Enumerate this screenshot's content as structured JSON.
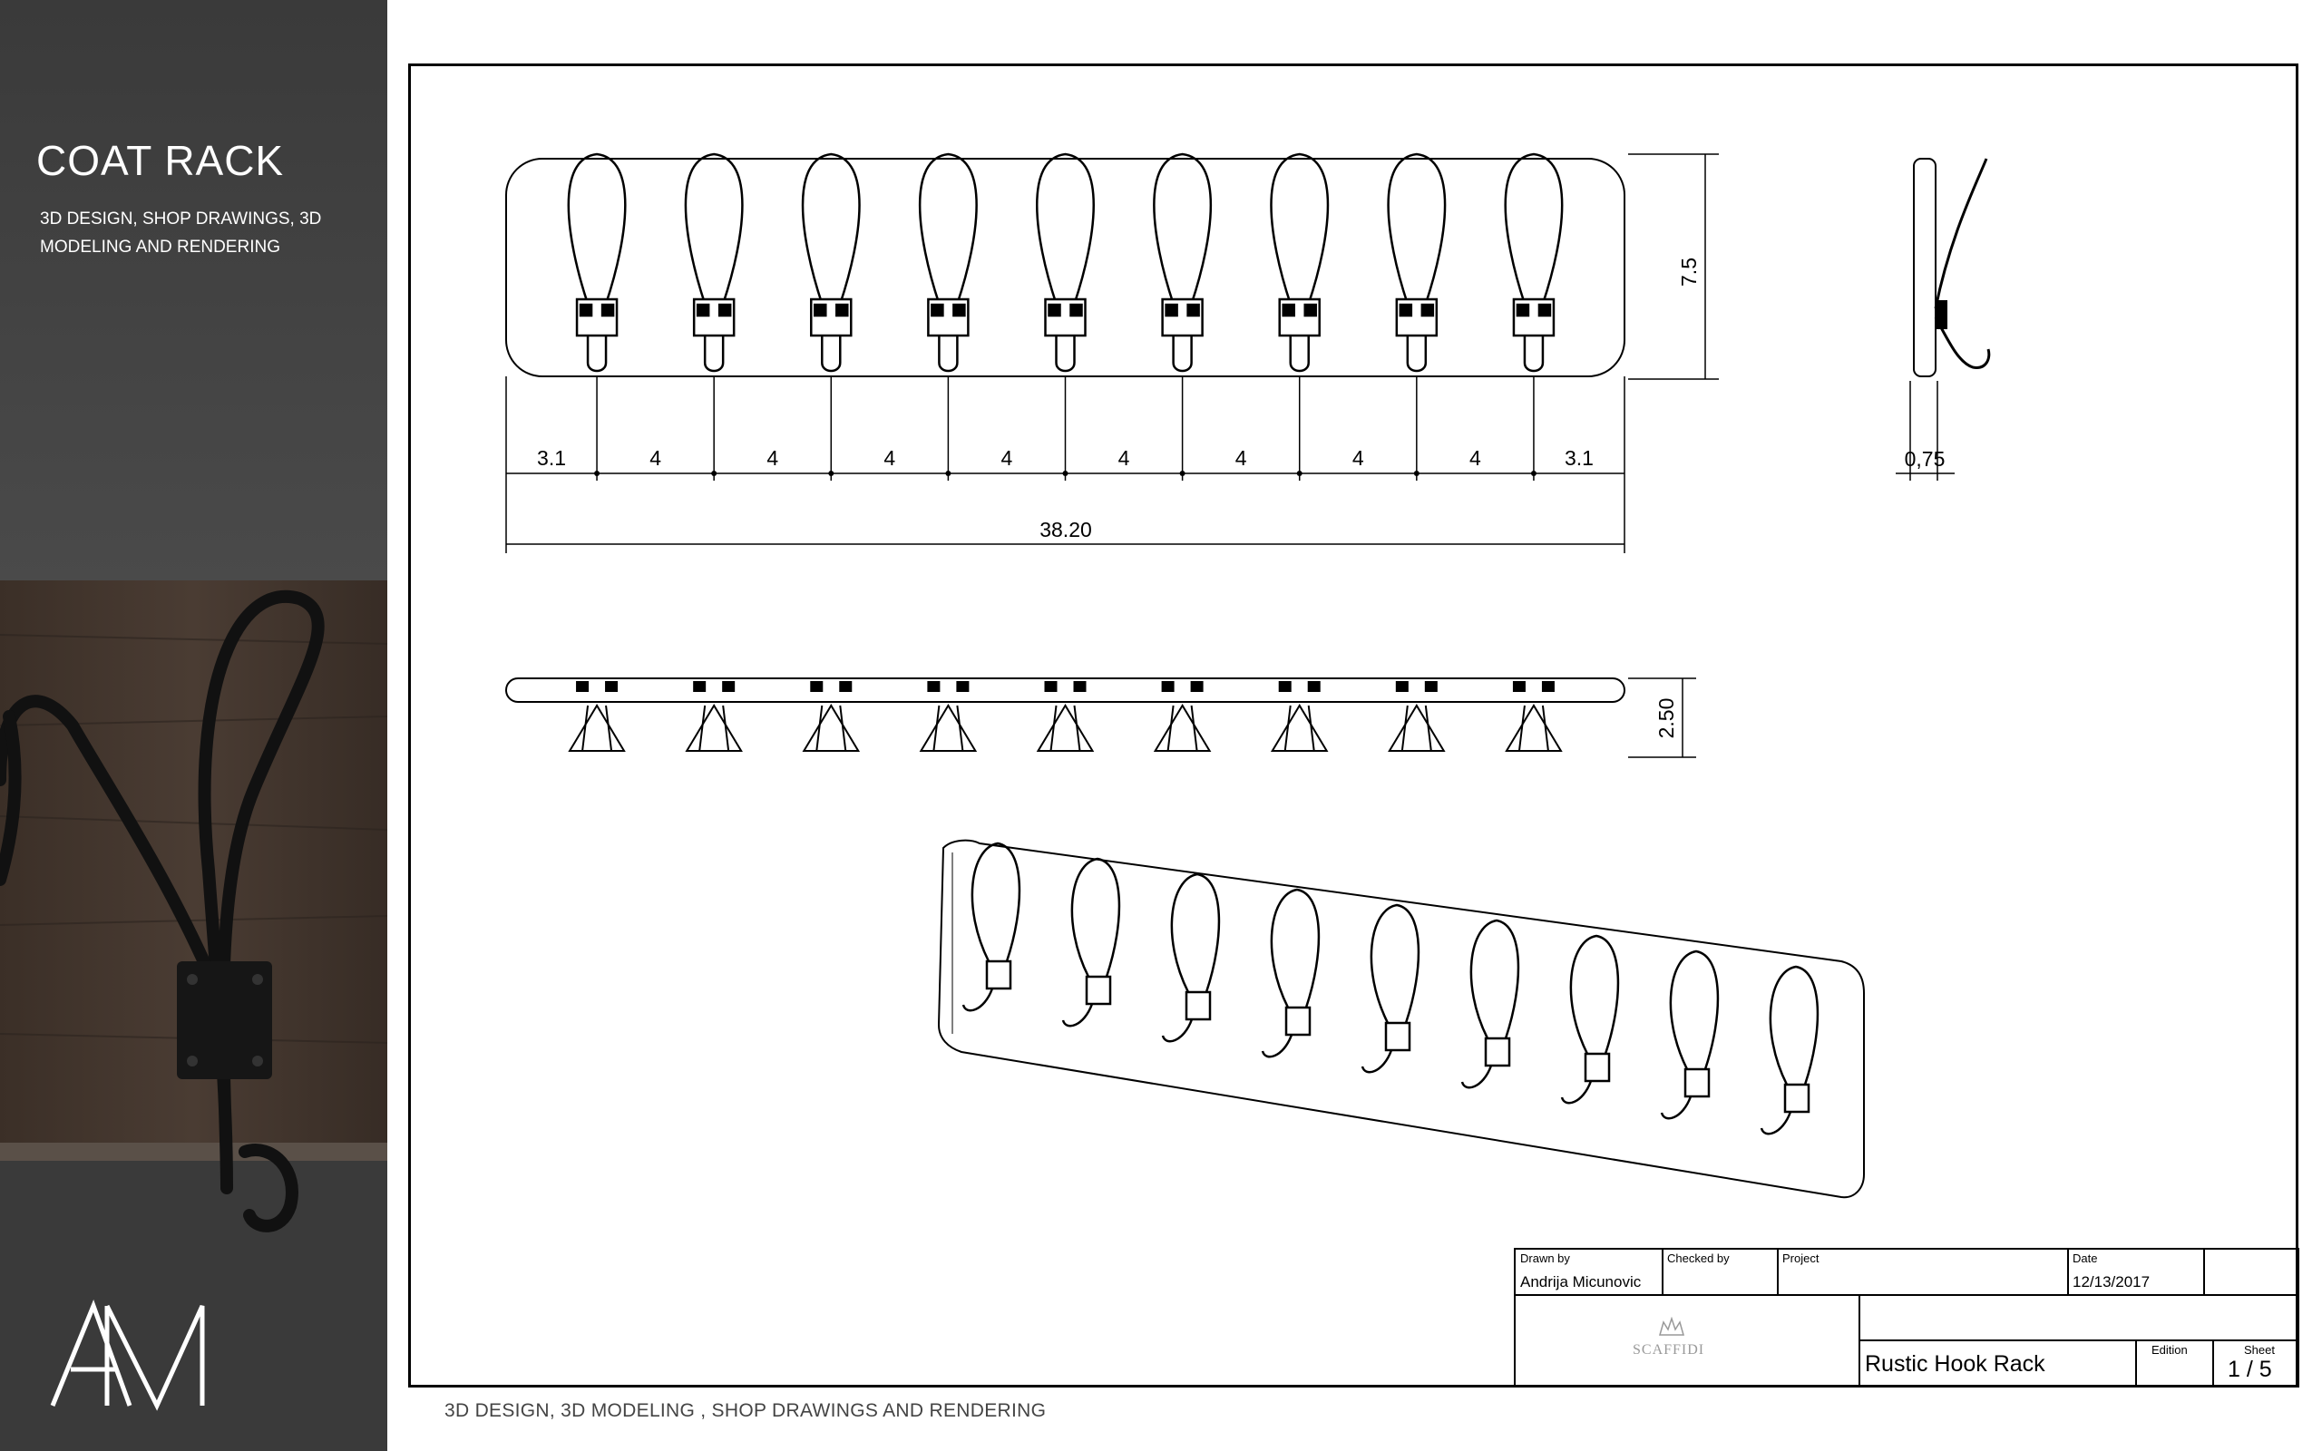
{
  "sidebar": {
    "title": "COAT RACK",
    "subtitle": "3D DESIGN, SHOP DRAWINGS, 3D MODELING AND RENDERING",
    "logo_text": "AM"
  },
  "footer_note": "3D DESIGN, 3D MODELING , SHOP DRAWINGS AND RENDERING",
  "dimensions": {
    "height": "7.5",
    "depth_small": "0,75",
    "total_width": "38.20",
    "side_height": "2.50",
    "segments": [
      "3.1",
      "4",
      "4",
      "4",
      "4",
      "4",
      "4",
      "4",
      "4",
      "3.1"
    ]
  },
  "title_block": {
    "drawn_by_label": "Drawn by",
    "drawn_by": "Andrija Micunovic",
    "checked_by_label": "Checked by",
    "checked_by": "",
    "project_label": "Project",
    "project": "",
    "date_label": "Date",
    "date": "12/13/2017",
    "company_logo": "SCAFFIDI",
    "part_name": "Rustic Hook Rack",
    "edition_label": "Edition",
    "edition": "",
    "sheet_label": "Sheet",
    "sheet": "1 / 5"
  },
  "colors": {
    "sidebar_bg": "#3d3d3d",
    "line": "#000000",
    "paper": "#ffffff"
  }
}
